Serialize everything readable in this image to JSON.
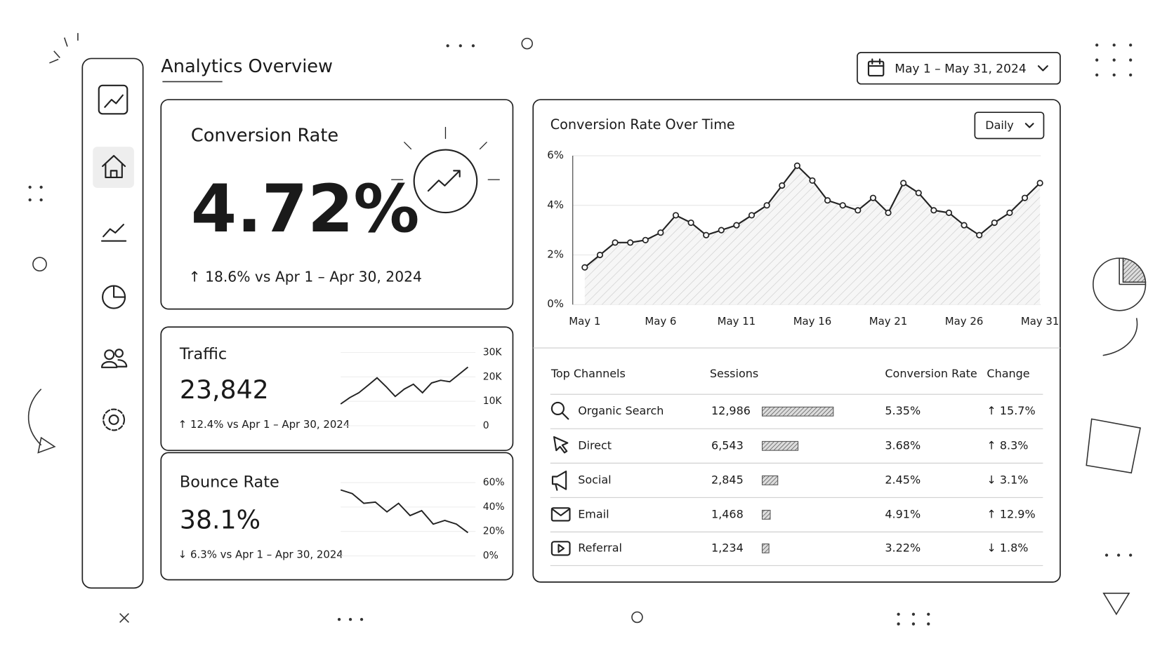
{
  "header": {
    "title": "Analytics Overview",
    "date_range": "May 1 – May 31, 2024"
  },
  "conversion_card": {
    "title": "Conversion Rate",
    "value": "4.72%",
    "change": "↑ 18.6% vs Apr 1 – Apr 30, 2024"
  },
  "traffic_card": {
    "title": "Traffic",
    "value": "23,842",
    "change": "↑ 12.4% vs Apr 1 – Apr 30, 2024"
  },
  "bounce_card": {
    "title": "Bounce Rate",
    "value": "38.1%",
    "change": "↓ 6.3% vs Apr 1 – Apr 30, 2024"
  },
  "period_selector": "Daily",
  "chart_data": [
    {
      "type": "line",
      "title": "Conversion Rate Over Time",
      "color": "#222222",
      "categories": [
        "May 1",
        null,
        null,
        null,
        null,
        "May 6",
        null,
        null,
        null,
        null,
        "May 11",
        null,
        null,
        null,
        null,
        "May 16",
        null,
        null,
        null,
        null,
        "May 21",
        null,
        null,
        null,
        null,
        "May 26",
        null,
        null,
        null,
        null,
        "May 31"
      ],
      "values": [
        1.5,
        2.0,
        2.5,
        2.5,
        2.6,
        2.9,
        3.6,
        3.3,
        2.8,
        3.0,
        3.2,
        3.6,
        4.0,
        4.8,
        5.6,
        5.0,
        4.2,
        4.0,
        3.8,
        4.3,
        3.7,
        4.9,
        4.5,
        3.8,
        3.7,
        3.2,
        2.8,
        3.3,
        3.7,
        4.3,
        4.9
      ],
      "ylim": [
        0,
        6
      ],
      "yticks": [
        {
          "value": 0,
          "label": "0%"
        },
        {
          "value": 2,
          "label": "2%"
        },
        {
          "value": 4,
          "label": "4%"
        },
        {
          "value": 6,
          "label": "6%"
        }
      ],
      "grid": true
    },
    {
      "type": "line",
      "color": "#222222",
      "values": [
        8900,
        11500,
        13500,
        16500,
        19600,
        16000,
        12000,
        15000,
        17000,
        13500,
        17500,
        18600,
        18000,
        21000,
        24000
      ],
      "ylim": [
        0,
        30000
      ],
      "yticks": [
        0,
        {
          "value": 10000,
          "label": "10K"
        },
        {
          "value": 20000,
          "label": "20K"
        },
        {
          "value": 30000,
          "label": "30K"
        }
      ],
      "grid": true
    },
    {
      "type": "line",
      "color": "#222222",
      "values": [
        54,
        51,
        43,
        44,
        36,
        43,
        33,
        37,
        26,
        29,
        26,
        19
      ],
      "ylim": [
        0,
        60
      ],
      "yticks": [
        {
          "value": 0,
          "label": "0%"
        },
        {
          "value": 20,
          "label": "20%"
        },
        {
          "value": 40,
          "label": "40%"
        },
        {
          "value": 60,
          "label": "60%"
        }
      ],
      "grid": true
    },
    {
      "type": "bar",
      "color": "#555555",
      "categories": [
        "Organic Search",
        "Direct",
        "Social",
        "Email",
        "Referral"
      ],
      "values": [
        12986,
        6543,
        2845,
        1468,
        1234
      ],
      "value_labels": [
        "12,986",
        "6,543",
        "2,845",
        "1,468",
        "1,234"
      ]
    }
  ],
  "table": {
    "headers": [
      "Top Channels",
      "Sessions",
      "Conversion Rate",
      "Change"
    ],
    "rows": [
      [
        "5.35%",
        "↑ 15.7%"
      ],
      [
        "3.68%",
        "↑ 8.3%"
      ],
      [
        "2.45%",
        "↓ 3.1%"
      ],
      [
        "4.91%",
        "↑ 12.9%"
      ],
      [
        "3.22%",
        "↓ 1.8%"
      ]
    ]
  }
}
